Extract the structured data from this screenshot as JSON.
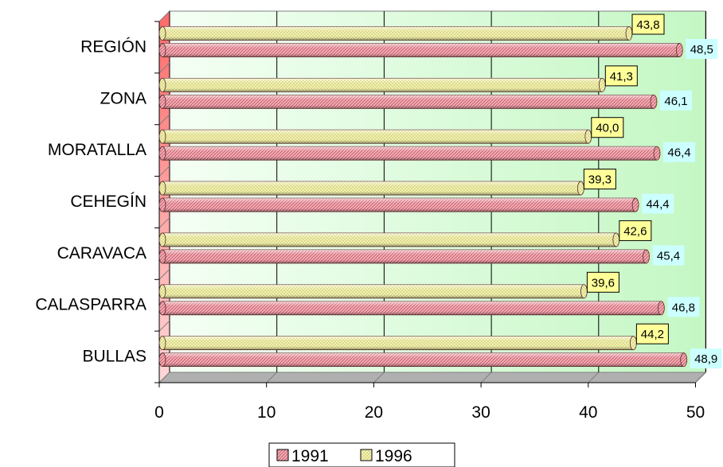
{
  "chart_data": {
    "type": "bar",
    "orientation": "horizontal",
    "style": "3d-cylinder",
    "categories": [
      "BULLAS",
      "CALASPARRA",
      "CARAVACA",
      "CEHEGÍN",
      "MORATALLA",
      "ZONA",
      "REGIÓN"
    ],
    "series": [
      {
        "name": "1991",
        "values": [
          48.9,
          46.8,
          45.4,
          44.4,
          46.4,
          46.1,
          48.5
        ],
        "labels": [
          "48,9",
          "46,8",
          "45,4",
          "44,4",
          "46,4",
          "46,1",
          "48,5"
        ],
        "color": "#f0a0a8"
      },
      {
        "name": "1996",
        "values": [
          44.2,
          39.6,
          42.6,
          39.3,
          40.0,
          41.3,
          43.8
        ],
        "labels": [
          "44,2",
          "39,6",
          "42,6",
          "39,3",
          "40,0",
          "41,3",
          "43,8"
        ],
        "color": "#f2f0a0"
      }
    ],
    "xlim": [
      0,
      50
    ],
    "xticks": [
      "0",
      "10",
      "20",
      "30",
      "40",
      "50"
    ],
    "grid": true,
    "legend": "bottom",
    "colors": {
      "plot_bg": "#ccffcc",
      "label_1991_bg": "#ccffff",
      "label_1996_bg": "#ffff99"
    }
  }
}
